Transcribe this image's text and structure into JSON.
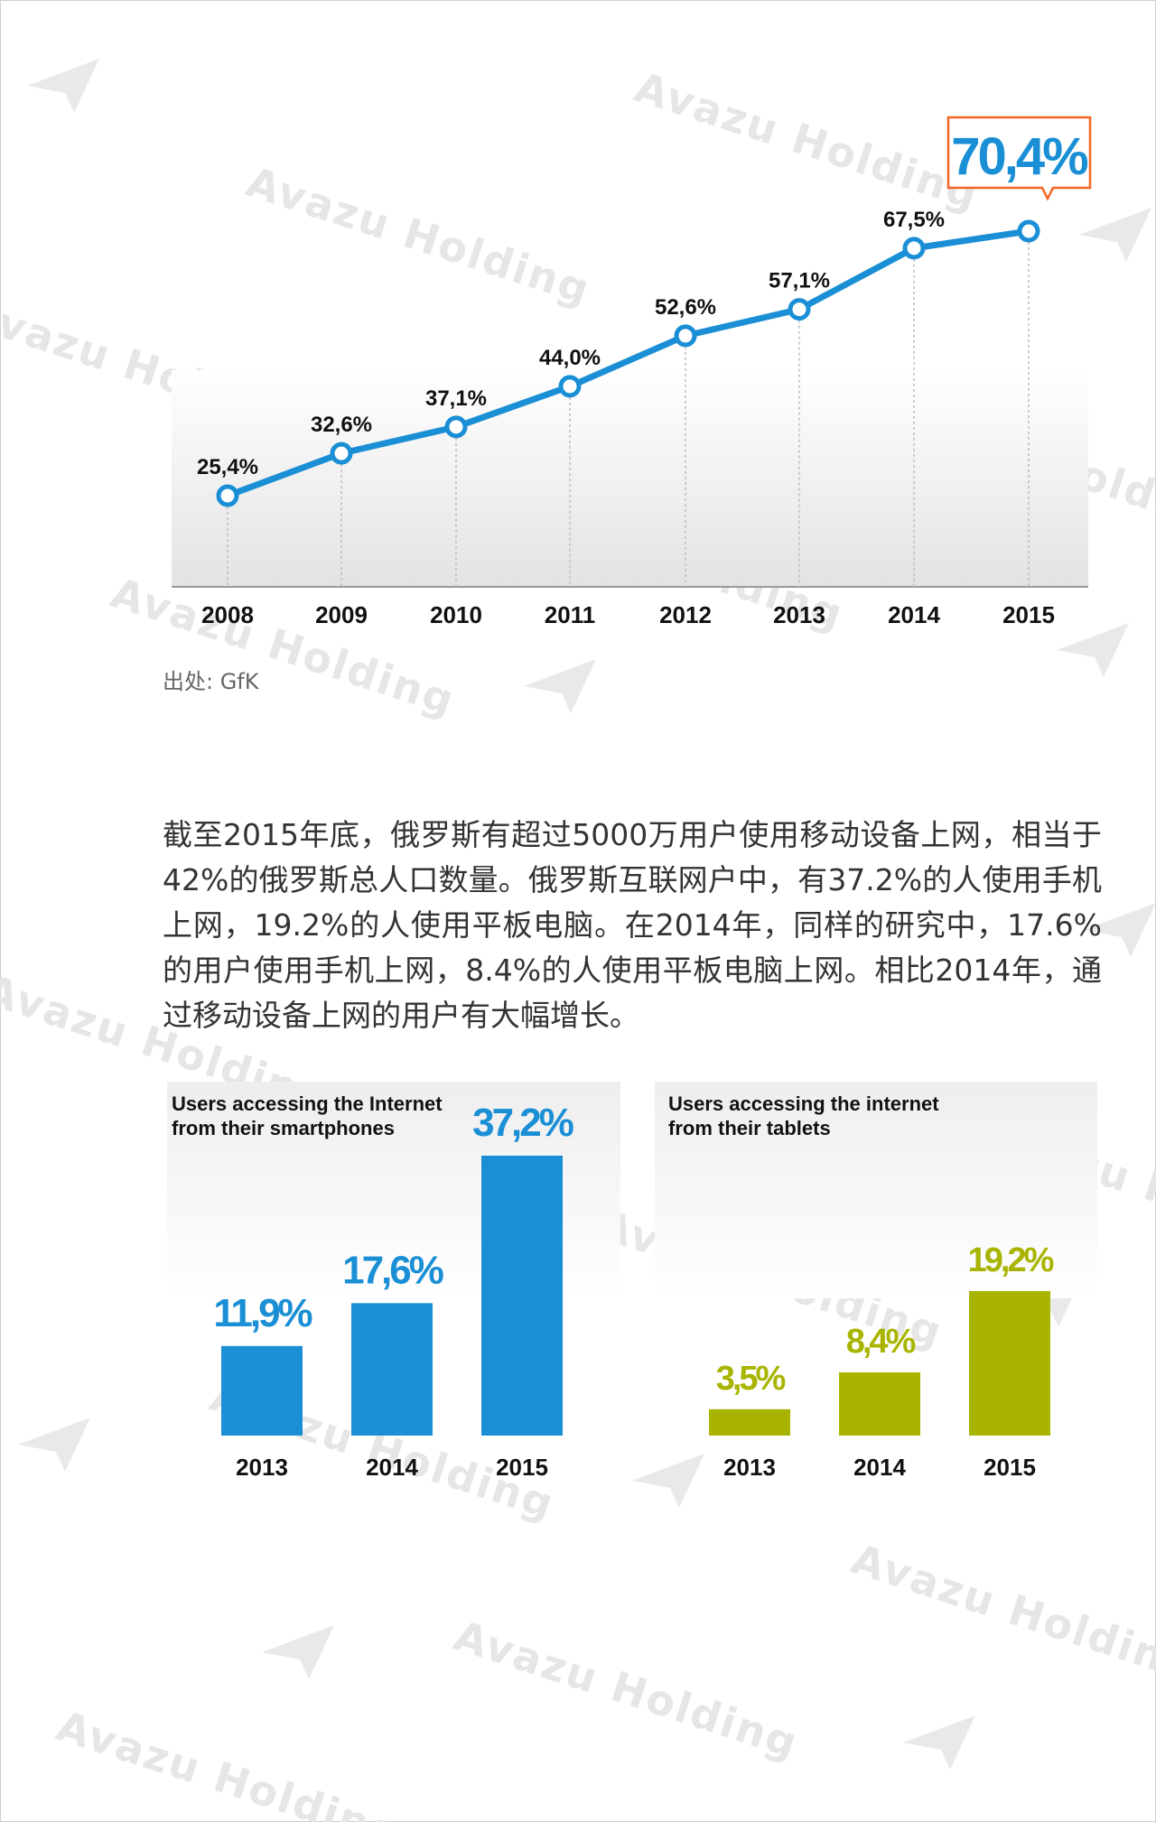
{
  "source_label": "出处: GfK",
  "paragraph": "截至2015年底，俄罗斯有超过5000万用户使用移动设备上网，相当于42%的俄罗斯总人口数量。俄罗斯互联网户中，有37.2%的人使用手机上网，19.2%的人使用平板电脑。在2014年，同样的研究中，17.6%的用户使用手机上网，8.4%的人使用平板电脑上网。相比2014年，通过移动设备上网的用户有大幅增长。",
  "watermark": "Avazu Holding",
  "colors": {
    "blue": "#1a8fd5",
    "olive": "#a8b400",
    "callout": "#f26522"
  },
  "chart_data": [
    {
      "type": "line",
      "x": [
        "2008",
        "2009",
        "2010",
        "2011",
        "2012",
        "2013",
        "2014",
        "2015"
      ],
      "series": [
        {
          "values": [
            25.4,
            32.6,
            37.1,
            44.0,
            52.6,
            57.1,
            67.5,
            70.4
          ]
        }
      ],
      "data_labels": [
        "25,4%",
        "32,6%",
        "37,1%",
        "44,0%",
        "52,6%",
        "57,1%",
        "67,5%",
        "70,4%"
      ],
      "highlight_index": 7,
      "grid": false
    },
    {
      "type": "bar",
      "title_lines": [
        "Users accessing the Internet",
        "from their smartphones"
      ],
      "categories": [
        "2013",
        "2014",
        "2015"
      ],
      "values": [
        11.9,
        17.6,
        37.2
      ],
      "data_labels": [
        "11,9%",
        "17,6%",
        "37,2%"
      ],
      "color": "#1a8fd5"
    },
    {
      "type": "bar",
      "title_lines": [
        "Users accessing the internet",
        "from their tablets"
      ],
      "categories": [
        "2013",
        "2014",
        "2015"
      ],
      "values": [
        3.5,
        8.4,
        19.2
      ],
      "data_labels": [
        "3,5%",
        "8,4%",
        "19,2%"
      ],
      "color": "#a8b400"
    }
  ]
}
